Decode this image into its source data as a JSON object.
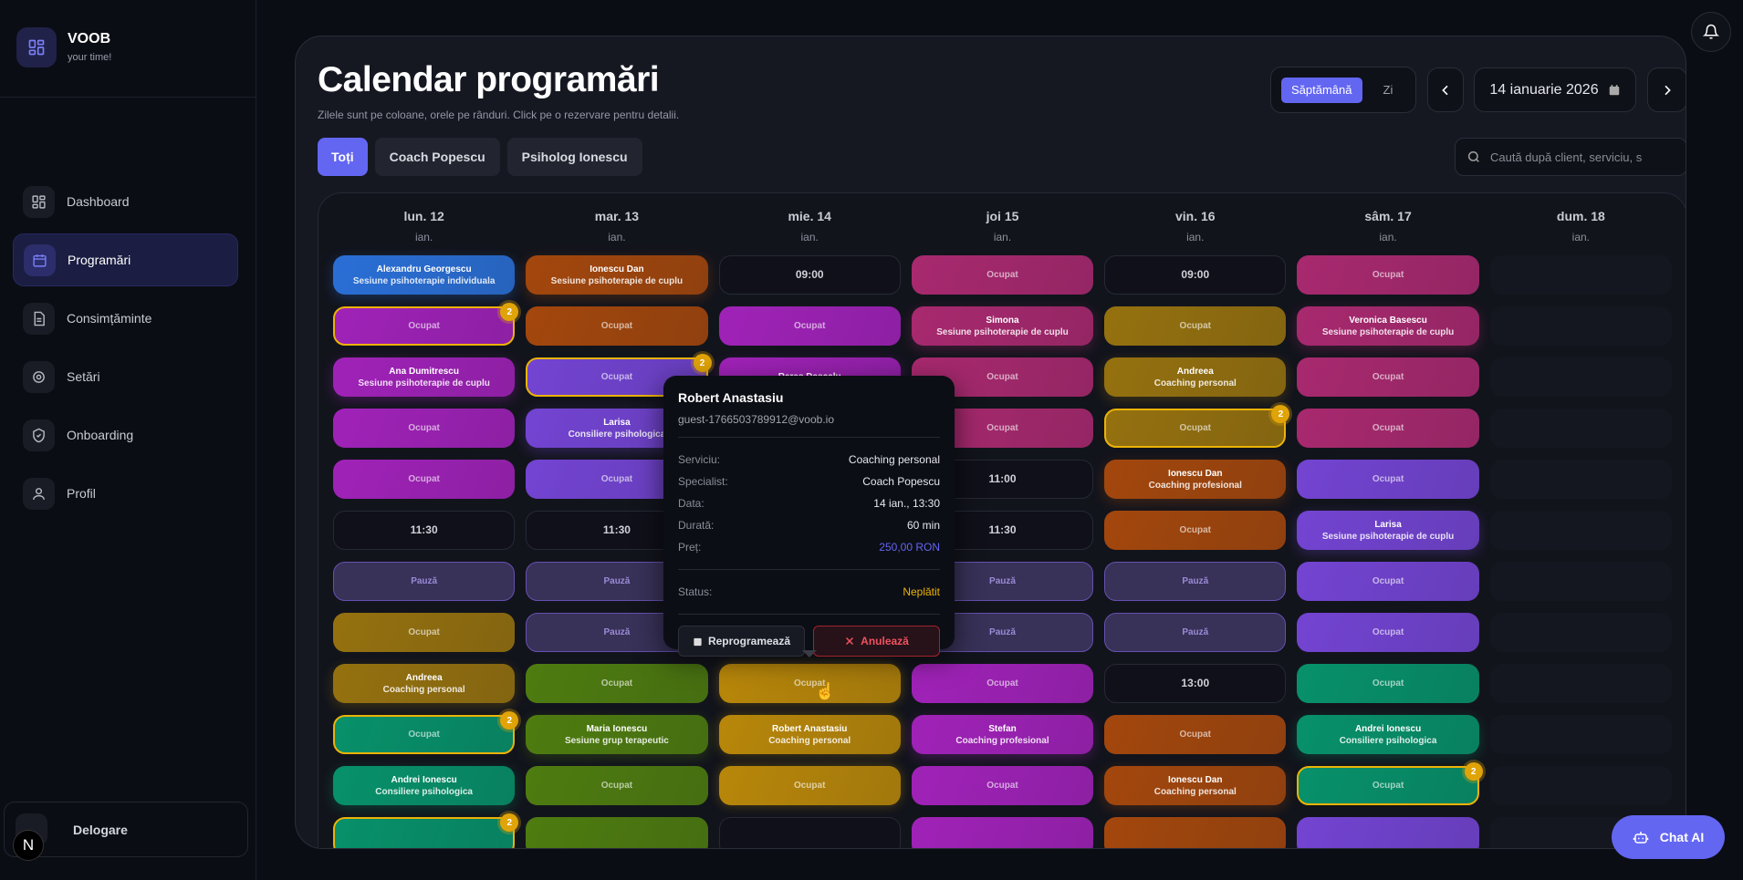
{
  "app": {
    "name": "VOOB",
    "tagline": "your time!"
  },
  "sidebar": {
    "items": [
      {
        "label": "Dashboard",
        "icon": "dashboard-icon"
      },
      {
        "label": "Programări",
        "icon": "calendar-icon",
        "active": true
      },
      {
        "label": "Consimțăminte",
        "icon": "document-icon"
      },
      {
        "label": "Setări",
        "icon": "gear-icon"
      },
      {
        "label": "Onboarding",
        "icon": "shield-icon"
      },
      {
        "label": "Profil",
        "icon": "user-icon"
      }
    ],
    "logout": "Delogare",
    "dev_badge": "N"
  },
  "header": {
    "title": "Calendar programări",
    "subtitle": "Zilele sunt pe coloane, orele pe rânduri. Click pe o rezervare pentru detalii.",
    "view_toggle": [
      "Săptămână",
      "Zi"
    ],
    "active_view": "Săptămână",
    "date": "14 ianuarie 2026",
    "search_placeholder": "Caută după client, serviciu, s"
  },
  "filters": [
    {
      "label": "Toți",
      "active": true
    },
    {
      "label": "Coach Popescu"
    },
    {
      "label": "Psiholog Ionescu"
    }
  ],
  "colors": {
    "accent": "#6366f1",
    "blue": "#2a6fd6",
    "magenta": "#a022b8",
    "violet": "#7344d2",
    "orange": "#a3470d",
    "gold": "#95710f",
    "gold_bright": "#b8870a",
    "green": "#07916a",
    "olive": "#4e7c10",
    "pink": "#a8296f",
    "badge": "#e0a308"
  },
  "calendar": {
    "days": [
      {
        "day": "lun. 12",
        "month": "ian.",
        "cells": [
          {
            "t": "b",
            "c": "blue",
            "name": "Alexandru Georgescu",
            "service": "Sesiune psihoterapie individuala"
          },
          {
            "t": "o",
            "c": "magenta",
            "label": "Ocupat",
            "badge": "2"
          },
          {
            "t": "b",
            "c": "magenta",
            "name": "Ana Dumitrescu",
            "service": "Sesiune psihoterapie de cuplu"
          },
          {
            "t": "o",
            "c": "magenta",
            "label": "Ocupat"
          },
          {
            "t": "o",
            "c": "magenta",
            "label": "Ocupat"
          },
          {
            "t": "time",
            "label": "11:30"
          },
          {
            "t": "pause",
            "label": "Pauză"
          },
          {
            "t": "o",
            "c": "gold",
            "label": "Ocupat"
          },
          {
            "t": "b",
            "c": "gold",
            "name": "Andreea",
            "service": "Coaching personal"
          },
          {
            "t": "o",
            "c": "green",
            "label": "Ocupat",
            "badge": "2"
          },
          {
            "t": "b",
            "c": "green",
            "name": "Andrei Ionescu",
            "service": "Consiliere psihologica"
          },
          {
            "t": "o",
            "c": "green",
            "badge": "2"
          }
        ]
      },
      {
        "day": "mar. 13",
        "month": "ian.",
        "cells": [
          {
            "t": "b",
            "c": "orange",
            "name": "Ionescu Dan",
            "service": "Sesiune psihoterapie de cuplu"
          },
          {
            "t": "o",
            "c": "orange",
            "label": "Ocupat"
          },
          {
            "t": "o",
            "c": "violet",
            "label": "Ocupat",
            "badge": "2"
          },
          {
            "t": "b",
            "c": "violet",
            "name": "Larisa",
            "service": "Consiliere psihologica"
          },
          {
            "t": "o",
            "c": "violet",
            "label": "Ocupat"
          },
          {
            "t": "time",
            "label": "11:30"
          },
          {
            "t": "pause",
            "label": "Pauză"
          },
          {
            "t": "pause",
            "label": "Pauză"
          },
          {
            "t": "o",
            "c": "olive",
            "label": "Ocupat"
          },
          {
            "t": "b",
            "c": "olive",
            "name": "Maria Ionescu",
            "service": "Sesiune grup terapeutic"
          },
          {
            "t": "o",
            "c": "olive",
            "label": "Ocupat"
          },
          {
            "t": "o",
            "c": "olive"
          }
        ]
      },
      {
        "day": "mie. 14",
        "month": "ian.",
        "cells": [
          {
            "t": "time",
            "label": "09:00"
          },
          {
            "t": "o",
            "c": "magenta",
            "label": "Ocupat"
          },
          {
            "t": "b",
            "c": "magenta",
            "name": "Rares Dascalu"
          },
          {
            "t": "empty"
          },
          {
            "t": "empty"
          },
          {
            "t": "empty"
          },
          {
            "t": "empty"
          },
          {
            "t": "empty"
          },
          {
            "t": "o",
            "c": "gold_bright",
            "label": "Ocupat"
          },
          {
            "t": "b",
            "c": "gold_bright",
            "name": "Robert Anastasiu",
            "service": "Coaching personal"
          },
          {
            "t": "o",
            "c": "gold_bright",
            "label": "Ocupat"
          },
          {
            "t": "time"
          }
        ]
      },
      {
        "day": "joi 15",
        "month": "ian.",
        "cells": [
          {
            "t": "o",
            "c": "pink",
            "label": "Ocupat"
          },
          {
            "t": "b",
            "c": "pink",
            "name": "Simona",
            "service": "Sesiune psihoterapie de cuplu"
          },
          {
            "t": "o",
            "c": "pink",
            "label": "Ocupat"
          },
          {
            "t": "o",
            "c": "pink",
            "label": "Ocupat"
          },
          {
            "t": "time",
            "label": "11:00"
          },
          {
            "t": "time",
            "label": "11:30"
          },
          {
            "t": "pause",
            "label": "Pauză"
          },
          {
            "t": "pause",
            "label": "Pauză"
          },
          {
            "t": "o",
            "c": "magenta",
            "label": "Ocupat"
          },
          {
            "t": "b",
            "c": "magenta",
            "name": "Stefan",
            "service": "Coaching profesional"
          },
          {
            "t": "o",
            "c": "magenta",
            "label": "Ocupat"
          },
          {
            "t": "o",
            "c": "magenta"
          }
        ]
      },
      {
        "day": "vin. 16",
        "month": "ian.",
        "cells": [
          {
            "t": "time",
            "label": "09:00"
          },
          {
            "t": "o",
            "c": "gold",
            "label": "Ocupat"
          },
          {
            "t": "b",
            "c": "gold",
            "name": "Andreea",
            "service": "Coaching personal"
          },
          {
            "t": "o",
            "c": "gold",
            "label": "Ocupat",
            "badge": "2"
          },
          {
            "t": "b",
            "c": "orange",
            "name": "Ionescu Dan",
            "service": "Coaching profesional"
          },
          {
            "t": "o",
            "c": "orange",
            "label": "Ocupat"
          },
          {
            "t": "pause",
            "label": "Pauză"
          },
          {
            "t": "pause",
            "label": "Pauză"
          },
          {
            "t": "time",
            "label": "13:00"
          },
          {
            "t": "o",
            "c": "orange",
            "label": "Ocupat"
          },
          {
            "t": "b",
            "c": "orange",
            "name": "Ionescu Dan",
            "service": "Coaching personal"
          },
          {
            "t": "o",
            "c": "orange"
          }
        ]
      },
      {
        "day": "sâm. 17",
        "month": "ian.",
        "cells": [
          {
            "t": "o",
            "c": "pink",
            "label": "Ocupat"
          },
          {
            "t": "b",
            "c": "pink",
            "name": "Veronica Basescu",
            "service": "Sesiune psihoterapie de cuplu"
          },
          {
            "t": "o",
            "c": "pink",
            "label": "Ocupat"
          },
          {
            "t": "o",
            "c": "pink",
            "label": "Ocupat"
          },
          {
            "t": "o",
            "c": "violet",
            "label": "Ocupat"
          },
          {
            "t": "b",
            "c": "violet",
            "name": "Larisa",
            "service": "Sesiune psihoterapie de cuplu"
          },
          {
            "t": "o",
            "c": "violet",
            "label": "Ocupat"
          },
          {
            "t": "o",
            "c": "violet",
            "label": "Ocupat"
          },
          {
            "t": "o",
            "c": "green",
            "label": "Ocupat"
          },
          {
            "t": "b",
            "c": "green",
            "name": "Andrei Ionescu",
            "service": "Consiliere psihologica"
          },
          {
            "t": "o",
            "c": "green",
            "label": "Ocupat",
            "badge": "2"
          },
          {
            "t": "o",
            "c": "violet"
          }
        ]
      },
      {
        "day": "dum. 18",
        "month": "ian.",
        "cells": [
          {
            "t": "empty"
          },
          {
            "t": "empty"
          },
          {
            "t": "empty"
          },
          {
            "t": "empty"
          },
          {
            "t": "empty"
          },
          {
            "t": "empty"
          },
          {
            "t": "empty"
          },
          {
            "t": "empty"
          },
          {
            "t": "empty"
          },
          {
            "t": "empty"
          },
          {
            "t": "empty"
          },
          {
            "t": "empty"
          }
        ]
      }
    ]
  },
  "popup": {
    "name": "Robert Anastasiu",
    "email": "guest-1766503789912@voob.io",
    "rows": [
      {
        "k": "Serviciu:",
        "v": "Coaching personal"
      },
      {
        "k": "Specialist:",
        "v": "Coach Popescu"
      },
      {
        "k": "Data:",
        "v": "14 ian., 13:30"
      },
      {
        "k": "Durată:",
        "v": "60 min"
      },
      {
        "k": "Preț:",
        "v": "250,00 RON",
        "color": "#6366f1"
      }
    ],
    "status_label": "Status:",
    "status": "Neplătit",
    "status_color": "#eab308",
    "reschedule": "Reprogramează",
    "cancel": "Anulează"
  },
  "chat": {
    "label": "Chat AI"
  }
}
